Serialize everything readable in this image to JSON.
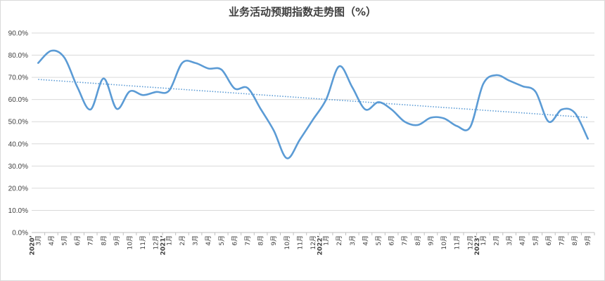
{
  "chart_data": {
    "type": "line",
    "title": "业务活动预期指数走势图（%）",
    "ylim": [
      0,
      90
    ],
    "y_ticks": [
      "0.0%",
      "10.0%",
      "20.0%",
      "30.0%",
      "40.0%",
      "50.0%",
      "60.0%",
      "70.0%",
      "80.0%",
      "90.0%"
    ],
    "grid": true,
    "x": [
      {
        "year": "2020",
        "month": "3月"
      },
      {
        "year": "",
        "month": "4月"
      },
      {
        "year": "",
        "month": "5月"
      },
      {
        "year": "",
        "month": "6月"
      },
      {
        "year": "",
        "month": "7月"
      },
      {
        "year": "",
        "month": "8月"
      },
      {
        "year": "",
        "month": "9月"
      },
      {
        "year": "",
        "month": "10月"
      },
      {
        "year": "",
        "month": "11月"
      },
      {
        "year": "",
        "month": "12月"
      },
      {
        "year": "2021",
        "month": "1月"
      },
      {
        "year": "",
        "month": "2月"
      },
      {
        "year": "",
        "month": "3月"
      },
      {
        "year": "",
        "month": "4月"
      },
      {
        "year": "",
        "month": "5月"
      },
      {
        "year": "",
        "month": "6月"
      },
      {
        "year": "",
        "month": "7月"
      },
      {
        "year": "",
        "month": "8月"
      },
      {
        "year": "",
        "month": "9月"
      },
      {
        "year": "",
        "month": "10月"
      },
      {
        "year": "",
        "month": "11月"
      },
      {
        "year": "",
        "month": "12月"
      },
      {
        "year": "2022",
        "month": "1月"
      },
      {
        "year": "",
        "month": "2月"
      },
      {
        "year": "",
        "month": "3月"
      },
      {
        "year": "",
        "month": "4月"
      },
      {
        "year": "",
        "month": "5月"
      },
      {
        "year": "",
        "month": "6月"
      },
      {
        "year": "",
        "month": "7月"
      },
      {
        "year": "",
        "month": "8月"
      },
      {
        "year": "",
        "month": "9月"
      },
      {
        "year": "",
        "month": "10月"
      },
      {
        "year": "",
        "month": "11月"
      },
      {
        "year": "",
        "month": "12月"
      },
      {
        "year": "2023",
        "month": "1月"
      },
      {
        "year": "",
        "month": "2月"
      },
      {
        "year": "",
        "month": "3月"
      },
      {
        "year": "",
        "month": "4月"
      },
      {
        "year": "",
        "month": "5月"
      },
      {
        "year": "",
        "month": "6月"
      },
      {
        "year": "",
        "month": "7月"
      },
      {
        "year": "",
        "month": "8月"
      },
      {
        "year": "",
        "month": "9月"
      }
    ],
    "series": [
      {
        "values": [
          76.5,
          82.0,
          78.9,
          65.5,
          55.5,
          69.5,
          55.8,
          63.7,
          62.0,
          63.4,
          64.0,
          76.5,
          76.5,
          74.0,
          73.5,
          65.0,
          65.2,
          55.7,
          46.0,
          33.5,
          42.0,
          51.0,
          60.0,
          75.0,
          65.5,
          55.5,
          58.8,
          55.5,
          50.0,
          48.5,
          51.8,
          51.5,
          48.0,
          47.5,
          67.0,
          71.0,
          68.5,
          66.0,
          63.5,
          50.0,
          55.5,
          54.0,
          42.3
        ],
        "color": "#5b9bd5"
      }
    ],
    "trendline": {
      "type": "linear",
      "style": "dotted",
      "color": "#5b9bd5"
    }
  }
}
